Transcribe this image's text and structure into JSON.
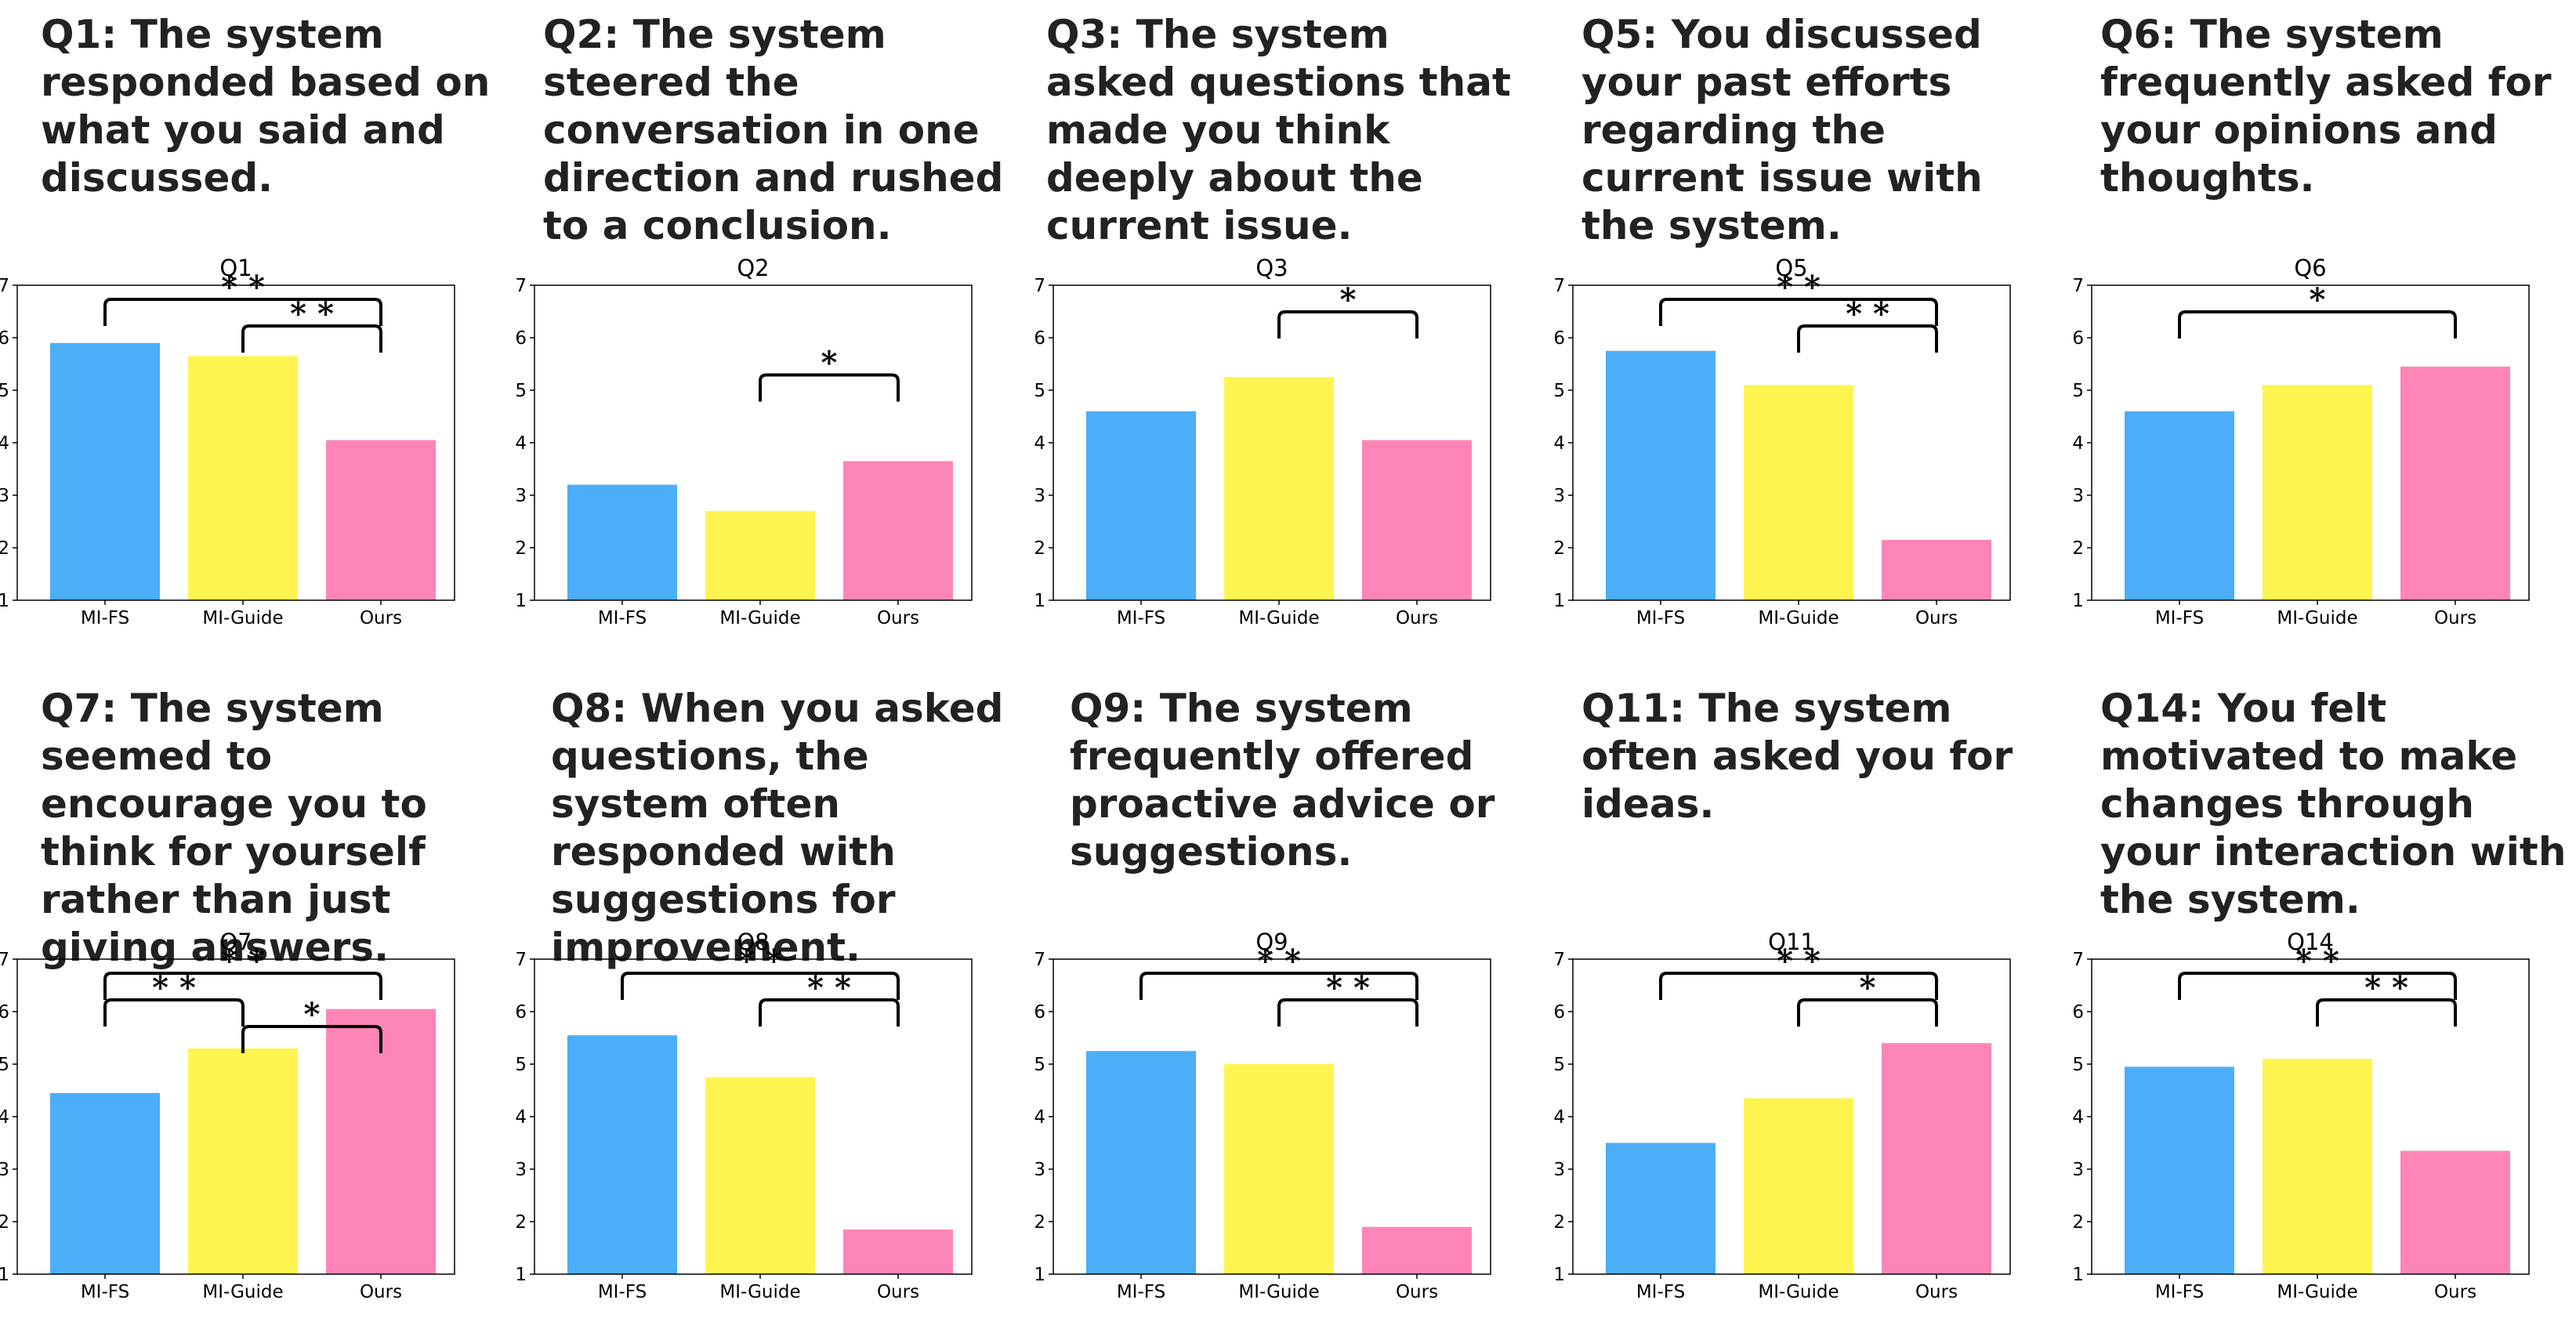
{
  "colors": {
    "MI-FS": "#4baef7",
    "MI-Guide": "#fff44f",
    "Ours": "#ff85b8"
  },
  "panels": [
    {
      "question": "Q1: The system responded based on what you said and discussed."
    },
    {
      "question": "Q2: The system steered the conversation in one direction and rushed to a conclusion."
    },
    {
      "question": "Q3: The system asked questions that made you think deeply about the current issue."
    },
    {
      "question": "Q5: You discussed your past efforts regarding the current issue with the system."
    },
    {
      "question": "Q6: The system frequently asked for your opinions and thoughts."
    },
    {
      "question": "Q7: The system seemed to encourage you to think for yourself rather than just giving answers."
    },
    {
      "question": "Q8: When you asked questions, the system often responded with suggestions for improvement."
    },
    {
      "question": "Q9: The system frequently offered proactive advice or suggestions."
    },
    {
      "question": "Q11: The system often asked you for ideas."
    },
    {
      "question": "Q14:  You felt motivated to make changes through your interaction with the system."
    }
  ],
  "chart_data": [
    {
      "type": "bar",
      "title": "Q1",
      "categories": [
        "MI-FS",
        "MI-Guide",
        "Ours"
      ],
      "values": [
        5.9,
        5.65,
        4.05
      ],
      "ylim": [
        1,
        7
      ],
      "yticks": [
        1,
        2,
        3,
        4,
        5,
        6,
        7
      ],
      "significance": [
        {
          "from": "MI-FS",
          "to": "Ours",
          "label": "* *"
        },
        {
          "from": "MI-Guide",
          "to": "Ours",
          "label": "* *"
        }
      ]
    },
    {
      "type": "bar",
      "title": "Q2",
      "categories": [
        "MI-FS",
        "MI-Guide",
        "Ours"
      ],
      "values": [
        3.2,
        2.7,
        3.65
      ],
      "ylim": [
        1,
        7
      ],
      "yticks": [
        1,
        2,
        3,
        4,
        5,
        6,
        7
      ],
      "significance": [
        {
          "from": "MI-Guide",
          "to": "Ours",
          "label": "*"
        }
      ]
    },
    {
      "type": "bar",
      "title": "Q3",
      "categories": [
        "MI-FS",
        "MI-Guide",
        "Ours"
      ],
      "values": [
        4.6,
        5.25,
        4.05
      ],
      "ylim": [
        1,
        7
      ],
      "yticks": [
        1,
        2,
        3,
        4,
        5,
        6,
        7
      ],
      "significance": [
        {
          "from": "MI-Guide",
          "to": "Ours",
          "label": "*"
        }
      ]
    },
    {
      "type": "bar",
      "title": "Q5",
      "categories": [
        "MI-FS",
        "MI-Guide",
        "Ours"
      ],
      "values": [
        5.75,
        5.1,
        2.15
      ],
      "ylim": [
        1,
        7
      ],
      "yticks": [
        1,
        2,
        3,
        4,
        5,
        6,
        7
      ],
      "significance": [
        {
          "from": "MI-FS",
          "to": "Ours",
          "label": "* *"
        },
        {
          "from": "MI-Guide",
          "to": "Ours",
          "label": "* *"
        }
      ]
    },
    {
      "type": "bar",
      "title": "Q6",
      "categories": [
        "MI-FS",
        "MI-Guide",
        "Ours"
      ],
      "values": [
        4.6,
        5.1,
        5.45
      ],
      "ylim": [
        1,
        7
      ],
      "yticks": [
        1,
        2,
        3,
        4,
        5,
        6,
        7
      ],
      "significance": [
        {
          "from": "MI-FS",
          "to": "Ours",
          "label": "*"
        }
      ]
    },
    {
      "type": "bar",
      "title": "Q7",
      "categories": [
        "MI-FS",
        "MI-Guide",
        "Ours"
      ],
      "values": [
        4.45,
        5.3,
        6.05
      ],
      "ylim": [
        1,
        7
      ],
      "yticks": [
        1,
        2,
        3,
        4,
        5,
        6,
        7
      ],
      "significance": [
        {
          "from": "MI-FS",
          "to": "Ours",
          "label": "* *"
        },
        {
          "from": "MI-FS",
          "to": "MI-Guide",
          "label": "* *"
        },
        {
          "from": "MI-Guide",
          "to": "Ours",
          "label": "*"
        }
      ]
    },
    {
      "type": "bar",
      "title": "Q8",
      "categories": [
        "MI-FS",
        "MI-Guide",
        "Ours"
      ],
      "values": [
        5.55,
        4.75,
        1.85
      ],
      "ylim": [
        1,
        7
      ],
      "yticks": [
        1,
        2,
        3,
        4,
        5,
        6,
        7
      ],
      "significance": [
        {
          "from": "MI-FS",
          "to": "Ours",
          "label": "* *"
        },
        {
          "from": "MI-Guide",
          "to": "Ours",
          "label": "* *"
        }
      ]
    },
    {
      "type": "bar",
      "title": "Q9",
      "categories": [
        "MI-FS",
        "MI-Guide",
        "Ours"
      ],
      "values": [
        5.25,
        5.0,
        1.9
      ],
      "ylim": [
        1,
        7
      ],
      "yticks": [
        1,
        2,
        3,
        4,
        5,
        6,
        7
      ],
      "significance": [
        {
          "from": "MI-FS",
          "to": "Ours",
          "label": "* *"
        },
        {
          "from": "MI-Guide",
          "to": "Ours",
          "label": "* *"
        }
      ]
    },
    {
      "type": "bar",
      "title": "Q11",
      "categories": [
        "MI-FS",
        "MI-Guide",
        "Ours"
      ],
      "values": [
        3.5,
        4.35,
        5.4
      ],
      "ylim": [
        1,
        7
      ],
      "yticks": [
        1,
        2,
        3,
        4,
        5,
        6,
        7
      ],
      "significance": [
        {
          "from": "MI-FS",
          "to": "Ours",
          "label": "* *"
        },
        {
          "from": "MI-Guide",
          "to": "Ours",
          "label": "*"
        }
      ]
    },
    {
      "type": "bar",
      "title": "Q14",
      "categories": [
        "MI-FS",
        "MI-Guide",
        "Ours"
      ],
      "values": [
        4.95,
        5.1,
        3.35
      ],
      "ylim": [
        1,
        7
      ],
      "yticks": [
        1,
        2,
        3,
        4,
        5,
        6,
        7
      ],
      "significance": [
        {
          "from": "MI-FS",
          "to": "Ours",
          "label": "* *"
        },
        {
          "from": "MI-Guide",
          "to": "Ours",
          "label": "* *"
        }
      ]
    }
  ]
}
